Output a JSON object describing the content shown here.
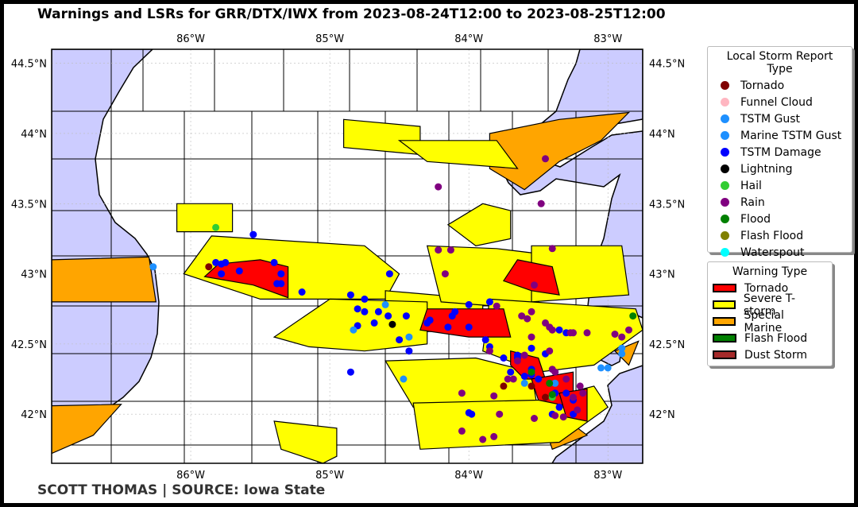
{
  "title": "Warnings and LSRs for GRR/DTX/IWX from 2023-08-24T12:00 to 2023-08-25T12:00",
  "credit": "SCOTT THOMAS | SOURCE: Iowa State",
  "map": {
    "lon_range": [
      -87.0,
      -82.75
    ],
    "lat_range": [
      41.65,
      44.6
    ],
    "lon_ticks": [
      {
        "v": -86,
        "label": "86°W"
      },
      {
        "v": -85,
        "label": "85°W"
      },
      {
        "v": -84,
        "label": "84°W"
      },
      {
        "v": -83,
        "label": "83°W"
      }
    ],
    "lat_ticks": [
      {
        "v": 44.5,
        "label": "44.5°N"
      },
      {
        "v": 44,
        "label": "44°N"
      },
      {
        "v": 43.5,
        "label": "43.5°N"
      },
      {
        "v": 43,
        "label": "43°N"
      },
      {
        "v": 42.5,
        "label": "42.5°N"
      },
      {
        "v": 42,
        "label": "42°N"
      }
    ],
    "gridlines": true,
    "water_color": "#ccccff",
    "warning_polygons": [
      {
        "type": "svr",
        "pts": [
          [
            -86.1,
            43.5
          ],
          [
            -85.7,
            43.5
          ],
          [
            -85.7,
            43.3
          ],
          [
            -86.1,
            43.3
          ]
        ]
      },
      {
        "type": "svr",
        "pts": [
          [
            -85.85,
            43.27
          ],
          [
            -84.75,
            43.2
          ],
          [
            -84.5,
            43.0
          ],
          [
            -84.6,
            42.82
          ],
          [
            -85.5,
            42.82
          ],
          [
            -86.05,
            43.0
          ]
        ]
      },
      {
        "type": "svr",
        "pts": [
          [
            -84.6,
            42.88
          ],
          [
            -83.9,
            42.82
          ],
          [
            -83.9,
            42.6
          ],
          [
            -84.6,
            42.58
          ]
        ]
      },
      {
        "type": "svr",
        "pts": [
          [
            -85.0,
            42.82
          ],
          [
            -84.3,
            42.8
          ],
          [
            -84.3,
            42.5
          ],
          [
            -84.75,
            42.45
          ],
          [
            -85.15,
            42.48
          ],
          [
            -85.4,
            42.55
          ]
        ]
      },
      {
        "type": "svr",
        "pts": [
          [
            -84.3,
            43.2
          ],
          [
            -83.8,
            43.18
          ],
          [
            -83.55,
            43.15
          ],
          [
            -83.4,
            42.9
          ],
          [
            -83.55,
            42.75
          ],
          [
            -84.2,
            42.8
          ]
        ]
      },
      {
        "type": "svr",
        "pts": [
          [
            -83.55,
            43.2
          ],
          [
            -82.9,
            43.2
          ],
          [
            -82.85,
            42.85
          ],
          [
            -83.55,
            42.8
          ]
        ]
      },
      {
        "type": "svr",
        "pts": [
          [
            -83.85,
            42.82
          ],
          [
            -82.8,
            42.75
          ],
          [
            -82.75,
            42.6
          ],
          [
            -83.1,
            42.35
          ],
          [
            -83.5,
            42.3
          ],
          [
            -83.9,
            42.45
          ]
        ]
      },
      {
        "type": "svr",
        "pts": [
          [
            -84.6,
            42.38
          ],
          [
            -83.95,
            42.4
          ],
          [
            -83.55,
            42.3
          ],
          [
            -83.5,
            42.0
          ],
          [
            -83.85,
            41.95
          ],
          [
            -84.4,
            42.05
          ]
        ]
      },
      {
        "type": "svr",
        "pts": [
          [
            -84.4,
            42.08
          ],
          [
            -83.5,
            42.1
          ],
          [
            -83.1,
            42.2
          ],
          [
            -83.0,
            42.05
          ],
          [
            -83.35,
            41.8
          ],
          [
            -84.35,
            41.75
          ]
        ]
      },
      {
        "type": "svr",
        "pts": [
          [
            -85.4,
            41.95
          ],
          [
            -84.95,
            41.9
          ],
          [
            -84.95,
            41.7
          ],
          [
            -85.05,
            41.65
          ],
          [
            -85.35,
            41.75
          ]
        ]
      },
      {
        "type": "svr",
        "pts": [
          [
            -84.9,
            44.1
          ],
          [
            -84.35,
            44.05
          ],
          [
            -84.35,
            43.85
          ],
          [
            -84.9,
            43.9
          ]
        ]
      },
      {
        "type": "svr",
        "pts": [
          [
            -84.5,
            43.95
          ],
          [
            -83.8,
            43.95
          ],
          [
            -83.65,
            43.75
          ],
          [
            -84.3,
            43.8
          ]
        ]
      },
      {
        "type": "svr",
        "pts": [
          [
            -84.15,
            43.35
          ],
          [
            -83.9,
            43.5
          ],
          [
            -83.7,
            43.45
          ],
          [
            -83.7,
            43.25
          ],
          [
            -83.95,
            43.2
          ]
        ]
      },
      {
        "type": "tor",
        "pts": [
          [
            -85.8,
            43.07
          ],
          [
            -85.5,
            43.1
          ],
          [
            -85.3,
            43.05
          ],
          [
            -85.3,
            42.83
          ],
          [
            -85.55,
            42.92
          ],
          [
            -85.9,
            42.98
          ]
        ]
      },
      {
        "type": "tor",
        "pts": [
          [
            -84.3,
            42.75
          ],
          [
            -83.75,
            42.75
          ],
          [
            -83.7,
            42.55
          ],
          [
            -84.0,
            42.55
          ],
          [
            -84.35,
            42.6
          ]
        ]
      },
      {
        "type": "tor",
        "pts": [
          [
            -83.65,
            43.1
          ],
          [
            -83.4,
            43.05
          ],
          [
            -83.35,
            42.85
          ],
          [
            -83.55,
            42.88
          ],
          [
            -83.75,
            42.95
          ]
        ]
      },
      {
        "type": "tor",
        "pts": [
          [
            -83.7,
            42.45
          ],
          [
            -83.5,
            42.4
          ],
          [
            -83.45,
            42.25
          ],
          [
            -83.6,
            42.25
          ],
          [
            -83.7,
            42.35
          ]
        ]
      },
      {
        "type": "tor",
        "pts": [
          [
            -83.55,
            42.25
          ],
          [
            -83.25,
            42.3
          ],
          [
            -83.25,
            42.05
          ],
          [
            -83.5,
            42.1
          ]
        ]
      },
      {
        "type": "tor",
        "pts": [
          [
            -83.35,
            42.15
          ],
          [
            -83.15,
            42.18
          ],
          [
            -83.15,
            41.95
          ],
          [
            -83.3,
            41.98
          ]
        ]
      },
      {
        "type": "smw",
        "pts": [
          [
            -83.85,
            44.0
          ],
          [
            -83.35,
            44.1
          ],
          [
            -82.85,
            44.15
          ],
          [
            -83.05,
            43.95
          ],
          [
            -83.35,
            43.8
          ],
          [
            -83.6,
            43.6
          ],
          [
            -83.85,
            43.75
          ]
        ]
      },
      {
        "type": "smw",
        "pts": [
          [
            -87.0,
            43.1
          ],
          [
            -86.3,
            43.12
          ],
          [
            -86.25,
            42.8
          ],
          [
            -87.0,
            42.8
          ]
        ]
      },
      {
        "type": "smw",
        "pts": [
          [
            -87.0,
            42.06
          ],
          [
            -86.5,
            42.07
          ],
          [
            -86.7,
            41.85
          ],
          [
            -87.0,
            41.72
          ]
        ]
      },
      {
        "type": "smw",
        "pts": [
          [
            -82.95,
            42.45
          ],
          [
            -82.78,
            42.52
          ],
          [
            -82.85,
            42.35
          ]
        ]
      },
      {
        "type": "smw",
        "pts": [
          [
            -83.35,
            42.0
          ],
          [
            -83.15,
            41.85
          ],
          [
            -83.4,
            41.75
          ],
          [
            -83.45,
            41.9
          ]
        ]
      }
    ]
  },
  "lsr_legend": {
    "title": "Local Storm Report Type",
    "items": [
      {
        "label": "Tornado",
        "color": "#800000"
      },
      {
        "label": "Funnel Cloud",
        "color": "#ffb6c1"
      },
      {
        "label": "TSTM Gust",
        "color": "#1e90ff"
      },
      {
        "label": "Marine TSTM Gust",
        "color": "#1e90ff"
      },
      {
        "label": "TSTM Damage",
        "color": "#0000ff"
      },
      {
        "label": "Lightning",
        "color": "#000000"
      },
      {
        "label": "Hail",
        "color": "#32cd32"
      },
      {
        "label": "Rain",
        "color": "#800080"
      },
      {
        "label": "Flood",
        "color": "#008000"
      },
      {
        "label": "Flash Flood",
        "color": "#808000"
      },
      {
        "label": "Waterspout",
        "color": "#00ffff"
      }
    ]
  },
  "warning_legend": {
    "title": "Warning Type",
    "items": [
      {
        "label": "Tornado",
        "color": "#ff0000"
      },
      {
        "label": "Severe T-storm",
        "color": "#ffff00"
      },
      {
        "label": "Special Marine",
        "color": "#ffa500"
      },
      {
        "label": "Flash Flood",
        "color": "#008000"
      },
      {
        "label": "Dust Storm",
        "color": "#a52a2a"
      }
    ]
  },
  "lsr_points": [
    {
      "t": "TSTM Damage",
      "pts": [
        [
          -85.82,
          43.08
        ],
        [
          -85.78,
          43.07
        ],
        [
          -85.75,
          43.08
        ],
        [
          -85.78,
          43.0
        ],
        [
          -85.65,
          43.02
        ],
        [
          -85.4,
          43.08
        ],
        [
          -85.35,
          43.0
        ],
        [
          -85.38,
          42.93
        ],
        [
          -85.35,
          42.93
        ],
        [
          -85.55,
          43.28
        ],
        [
          -85.2,
          42.87
        ],
        [
          -84.85,
          42.85
        ],
        [
          -84.75,
          42.82
        ],
        [
          -84.8,
          42.75
        ],
        [
          -84.75,
          42.73
        ],
        [
          -84.65,
          42.73
        ],
        [
          -84.58,
          42.7
        ],
        [
          -84.8,
          42.63
        ],
        [
          -84.68,
          42.65
        ],
        [
          -84.57,
          43.0
        ],
        [
          -84.45,
          42.7
        ],
        [
          -84.5,
          42.53
        ],
        [
          -84.43,
          42.45
        ],
        [
          -84.3,
          42.65
        ],
        [
          -84.28,
          42.67
        ],
        [
          -84.15,
          42.62
        ],
        [
          -84.1,
          42.73
        ],
        [
          -84.0,
          42.78
        ],
        [
          -83.85,
          42.8
        ],
        [
          -84.12,
          42.7
        ],
        [
          -84.0,
          42.62
        ],
        [
          -83.88,
          42.53
        ],
        [
          -83.85,
          42.48
        ],
        [
          -83.75,
          42.4
        ],
        [
          -83.65,
          42.42
        ],
        [
          -83.55,
          42.47
        ],
        [
          -83.45,
          42.43
        ],
        [
          -83.3,
          42.58
        ],
        [
          -83.35,
          42.6
        ],
        [
          -83.7,
          42.3
        ],
        [
          -83.65,
          42.4
        ],
        [
          -84.85,
          42.3
        ],
        [
          -83.6,
          42.27
        ],
        [
          -83.5,
          42.25
        ],
        [
          -83.38,
          42.15
        ],
        [
          -83.3,
          42.15
        ],
        [
          -83.25,
          42.1
        ],
        [
          -83.35,
          42.05
        ],
        [
          -83.4,
          42.0
        ],
        [
          -83.25,
          42.0
        ],
        [
          -84.0,
          42.01
        ],
        [
          -83.98,
          42.0
        ],
        [
          -83.55,
          42.28
        ],
        [
          -83.55,
          42.32
        ]
      ]
    },
    {
      "t": "TSTM Gust",
      "pts": [
        [
          -86.27,
          43.05
        ],
        [
          -84.6,
          42.78
        ],
        [
          -84.83,
          42.6
        ],
        [
          -84.43,
          42.55
        ],
        [
          -84.47,
          42.25
        ],
        [
          -83.6,
          42.22
        ],
        [
          -83.38,
          42.22
        ],
        [
          -83.05,
          42.33
        ],
        [
          -83.0,
          42.33
        ],
        [
          -82.9,
          42.43
        ],
        [
          -82.9,
          42.47
        ]
      ]
    },
    {
      "t": "Rain",
      "pts": [
        [
          -84.22,
          43.62
        ],
        [
          -83.45,
          43.82
        ],
        [
          -83.48,
          43.5
        ],
        [
          -84.22,
          43.17
        ],
        [
          -84.13,
          43.17
        ],
        [
          -84.17,
          43.0
        ],
        [
          -83.4,
          43.18
        ],
        [
          -83.53,
          42.92
        ],
        [
          -83.8,
          42.77
        ],
        [
          -83.55,
          42.73
        ],
        [
          -83.62,
          42.7
        ],
        [
          -83.58,
          42.68
        ],
        [
          -83.45,
          42.65
        ],
        [
          -83.4,
          42.6
        ],
        [
          -83.42,
          42.62
        ],
        [
          -83.55,
          42.55
        ],
        [
          -83.42,
          42.45
        ],
        [
          -83.25,
          42.58
        ],
        [
          -83.27,
          42.58
        ],
        [
          -83.15,
          42.58
        ],
        [
          -82.95,
          42.57
        ],
        [
          -82.85,
          42.6
        ],
        [
          -82.9,
          42.55
        ],
        [
          -83.85,
          42.45
        ],
        [
          -83.65,
          42.38
        ],
        [
          -83.6,
          42.42
        ],
        [
          -83.72,
          42.25
        ],
        [
          -83.68,
          42.25
        ],
        [
          -83.4,
          42.32
        ],
        [
          -83.38,
          42.3
        ],
        [
          -83.3,
          42.25
        ],
        [
          -83.2,
          42.2
        ],
        [
          -83.18,
          42.15
        ],
        [
          -83.25,
          42.12
        ],
        [
          -84.05,
          42.15
        ],
        [
          -83.82,
          42.13
        ],
        [
          -83.78,
          42.0
        ],
        [
          -84.05,
          41.88
        ],
        [
          -83.9,
          41.82
        ],
        [
          -83.82,
          41.84
        ],
        [
          -83.53,
          41.97
        ],
        [
          -83.38,
          41.99
        ],
        [
          -83.32,
          41.98
        ],
        [
          -83.22,
          42.03
        ]
      ]
    },
    {
      "t": "Tornado",
      "pts": [
        [
          -85.87,
          43.05
        ],
        [
          -83.75,
          42.2
        ],
        [
          -83.55,
          42.2
        ],
        [
          -83.45,
          42.12
        ]
      ]
    },
    {
      "t": "Hail",
      "pts": [
        [
          -85.82,
          43.33
        ],
        [
          -83.4,
          42.12
        ]
      ]
    },
    {
      "t": "Flood",
      "pts": [
        [
          -82.82,
          42.7
        ],
        [
          -83.55,
          42.3
        ],
        [
          -83.42,
          42.22
        ],
        [
          -83.4,
          42.14
        ]
      ]
    },
    {
      "t": "Lightning",
      "pts": [
        [
          -84.55,
          42.64
        ]
      ]
    }
  ]
}
